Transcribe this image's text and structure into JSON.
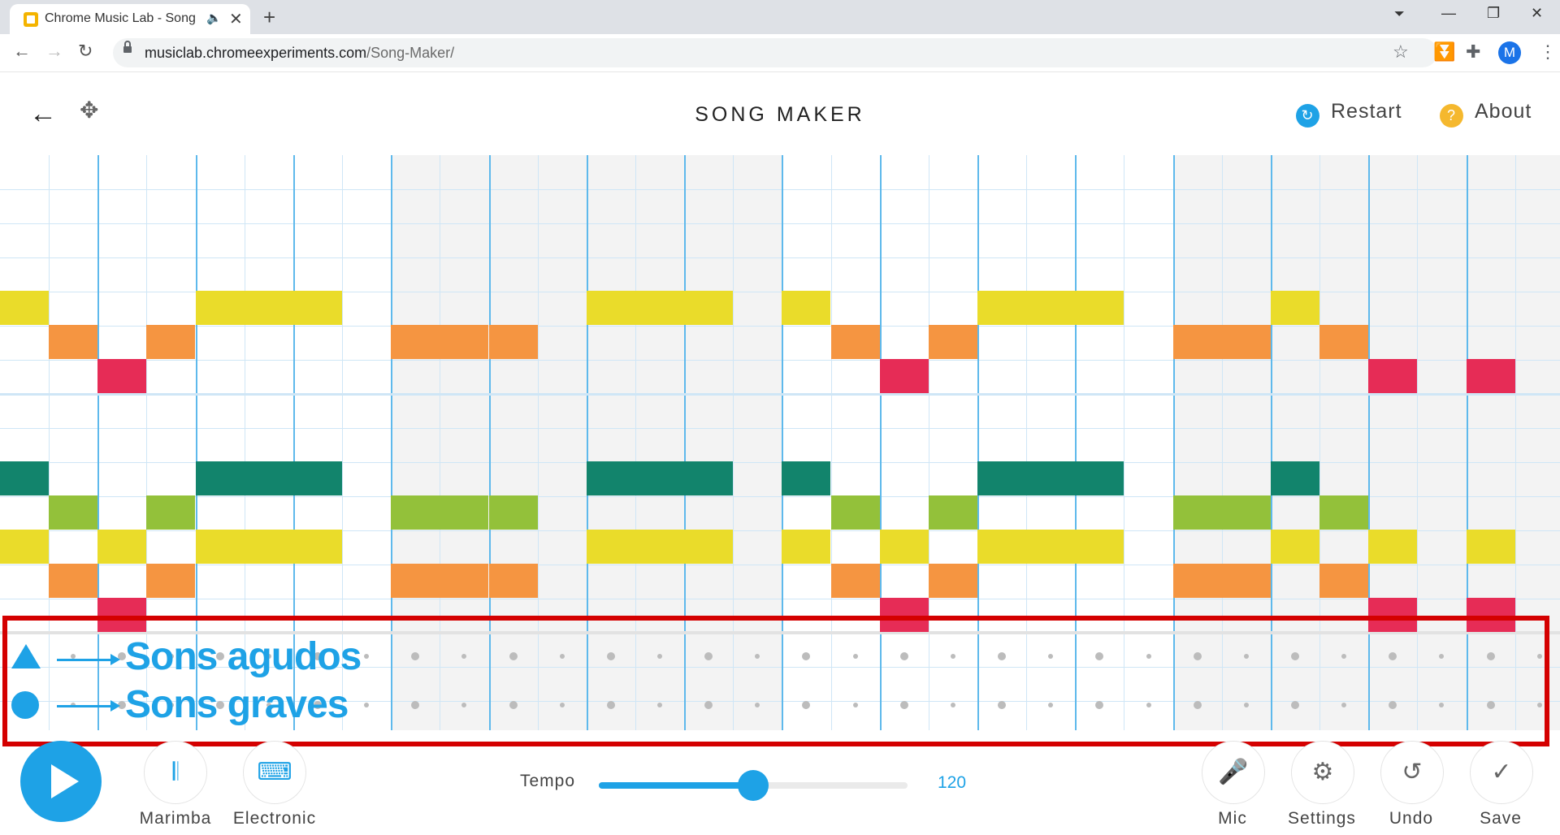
{
  "browser": {
    "tab_title": "Chrome Music Lab - Song Maker",
    "url_domain": "musiclab.chromeexperiments.com",
    "url_path": "/Song-Maker/",
    "new_tab": "+",
    "tab_close": "✕",
    "profile_initial": "M"
  },
  "header": {
    "title": "SONG MAKER",
    "restart_label": "Restart",
    "about_label": "About"
  },
  "annotation": {
    "high_label": "Sons agudos",
    "low_label": "Sons graves",
    "box_color": "#d40000",
    "accent": "#1ea2e6"
  },
  "colors": {
    "pitch": [
      "#e62c56",
      "#f59541",
      "#eadc2a",
      "#93c13a",
      "#12846c"
    ],
    "grid_line": "#cfe6f6",
    "beat_line": "#5eb9ec",
    "accent": "#1ea2e6"
  },
  "grid": {
    "columns": 32,
    "melody_rows": 14,
    "notes": [
      {
        "row": 0,
        "col": 4,
        "color": 2
      },
      {
        "row": 0,
        "col": 5,
        "color": 2
      },
      {
        "row": 0,
        "col": 6,
        "color": 2
      },
      {
        "row": 0,
        "col": 0,
        "color": 2
      },
      {
        "row": 0,
        "col": 12,
        "color": 2
      },
      {
        "row": 0,
        "col": 13,
        "color": 2
      },
      {
        "row": 0,
        "col": 14,
        "color": 2
      },
      {
        "row": 0,
        "col": 16,
        "color": 2
      },
      {
        "row": 0,
        "col": 20,
        "color": 2
      },
      {
        "row": 0,
        "col": 21,
        "color": 2
      },
      {
        "row": 0,
        "col": 22,
        "color": 2
      },
      {
        "row": 0,
        "col": 26,
        "color": 2
      },
      {
        "row": 1,
        "col": 1,
        "color": 1
      },
      {
        "row": 1,
        "col": 3,
        "color": 1
      },
      {
        "row": 1,
        "col": 8,
        "color": 1
      },
      {
        "row": 1,
        "col": 9,
        "color": 1
      },
      {
        "row": 1,
        "col": 10,
        "color": 1
      },
      {
        "row": 1,
        "col": 17,
        "color": 1
      },
      {
        "row": 1,
        "col": 19,
        "color": 1
      },
      {
        "row": 1,
        "col": 24,
        "color": 1
      },
      {
        "row": 1,
        "col": 25,
        "color": 1
      },
      {
        "row": 1,
        "col": 27,
        "color": 1
      },
      {
        "row": 2,
        "col": 2,
        "color": 0
      },
      {
        "row": 2,
        "col": 18,
        "color": 0
      },
      {
        "row": 2,
        "col": 28,
        "color": 0
      },
      {
        "row": 2,
        "col": 30,
        "color": 0
      },
      {
        "row": 5,
        "col": 0,
        "color": 4
      },
      {
        "row": 5,
        "col": 4,
        "color": 4
      },
      {
        "row": 5,
        "col": 5,
        "color": 4
      },
      {
        "row": 5,
        "col": 6,
        "color": 4
      },
      {
        "row": 5,
        "col": 12,
        "color": 4
      },
      {
        "row": 5,
        "col": 13,
        "color": 4
      },
      {
        "row": 5,
        "col": 14,
        "color": 4
      },
      {
        "row": 5,
        "col": 16,
        "color": 4
      },
      {
        "row": 5,
        "col": 20,
        "color": 4
      },
      {
        "row": 5,
        "col": 21,
        "color": 4
      },
      {
        "row": 5,
        "col": 22,
        "color": 4
      },
      {
        "row": 5,
        "col": 26,
        "color": 4
      },
      {
        "row": 6,
        "col": 1,
        "color": 3
      },
      {
        "row": 6,
        "col": 3,
        "color": 3
      },
      {
        "row": 6,
        "col": 8,
        "color": 3
      },
      {
        "row": 6,
        "col": 9,
        "color": 3
      },
      {
        "row": 6,
        "col": 10,
        "color": 3
      },
      {
        "row": 6,
        "col": 17,
        "color": 3
      },
      {
        "row": 6,
        "col": 19,
        "color": 3
      },
      {
        "row": 6,
        "col": 24,
        "color": 3
      },
      {
        "row": 6,
        "col": 25,
        "color": 3
      },
      {
        "row": 6,
        "col": 27,
        "color": 3
      },
      {
        "row": 7,
        "col": 0,
        "color": 2
      },
      {
        "row": 7,
        "col": 2,
        "color": 2
      },
      {
        "row": 7,
        "col": 4,
        "color": 2
      },
      {
        "row": 7,
        "col": 5,
        "color": 2
      },
      {
        "row": 7,
        "col": 6,
        "color": 2
      },
      {
        "row": 7,
        "col": 12,
        "color": 2
      },
      {
        "row": 7,
        "col": 13,
        "color": 2
      },
      {
        "row": 7,
        "col": 14,
        "color": 2
      },
      {
        "row": 7,
        "col": 16,
        "color": 2
      },
      {
        "row": 7,
        "col": 18,
        "color": 2
      },
      {
        "row": 7,
        "col": 20,
        "color": 2
      },
      {
        "row": 7,
        "col": 21,
        "color": 2
      },
      {
        "row": 7,
        "col": 22,
        "color": 2
      },
      {
        "row": 7,
        "col": 26,
        "color": 2
      },
      {
        "row": 7,
        "col": 28,
        "color": 2
      },
      {
        "row": 7,
        "col": 30,
        "color": 2
      },
      {
        "row": 8,
        "col": 1,
        "color": 1
      },
      {
        "row": 8,
        "col": 3,
        "color": 1
      },
      {
        "row": 8,
        "col": 8,
        "color": 1
      },
      {
        "row": 8,
        "col": 9,
        "color": 1
      },
      {
        "row": 8,
        "col": 10,
        "color": 1
      },
      {
        "row": 8,
        "col": 17,
        "color": 1
      },
      {
        "row": 8,
        "col": 19,
        "color": 1
      },
      {
        "row": 8,
        "col": 24,
        "color": 1
      },
      {
        "row": 8,
        "col": 25,
        "color": 1
      },
      {
        "row": 8,
        "col": 27,
        "color": 1
      },
      {
        "row": 9,
        "col": 2,
        "color": 0
      },
      {
        "row": 9,
        "col": 18,
        "color": 0
      },
      {
        "row": 9,
        "col": 28,
        "color": 0
      },
      {
        "row": 9,
        "col": 30,
        "color": 0
      }
    ]
  },
  "controls": {
    "marimba_label": "Marimba",
    "electronic_label": "Electronic",
    "tempo_label": "Tempo",
    "tempo_value": "120",
    "tempo_fraction": 0.5,
    "mic_label": "Mic",
    "settings_label": "Settings",
    "undo_label": "Undo",
    "save_label": "Save"
  }
}
